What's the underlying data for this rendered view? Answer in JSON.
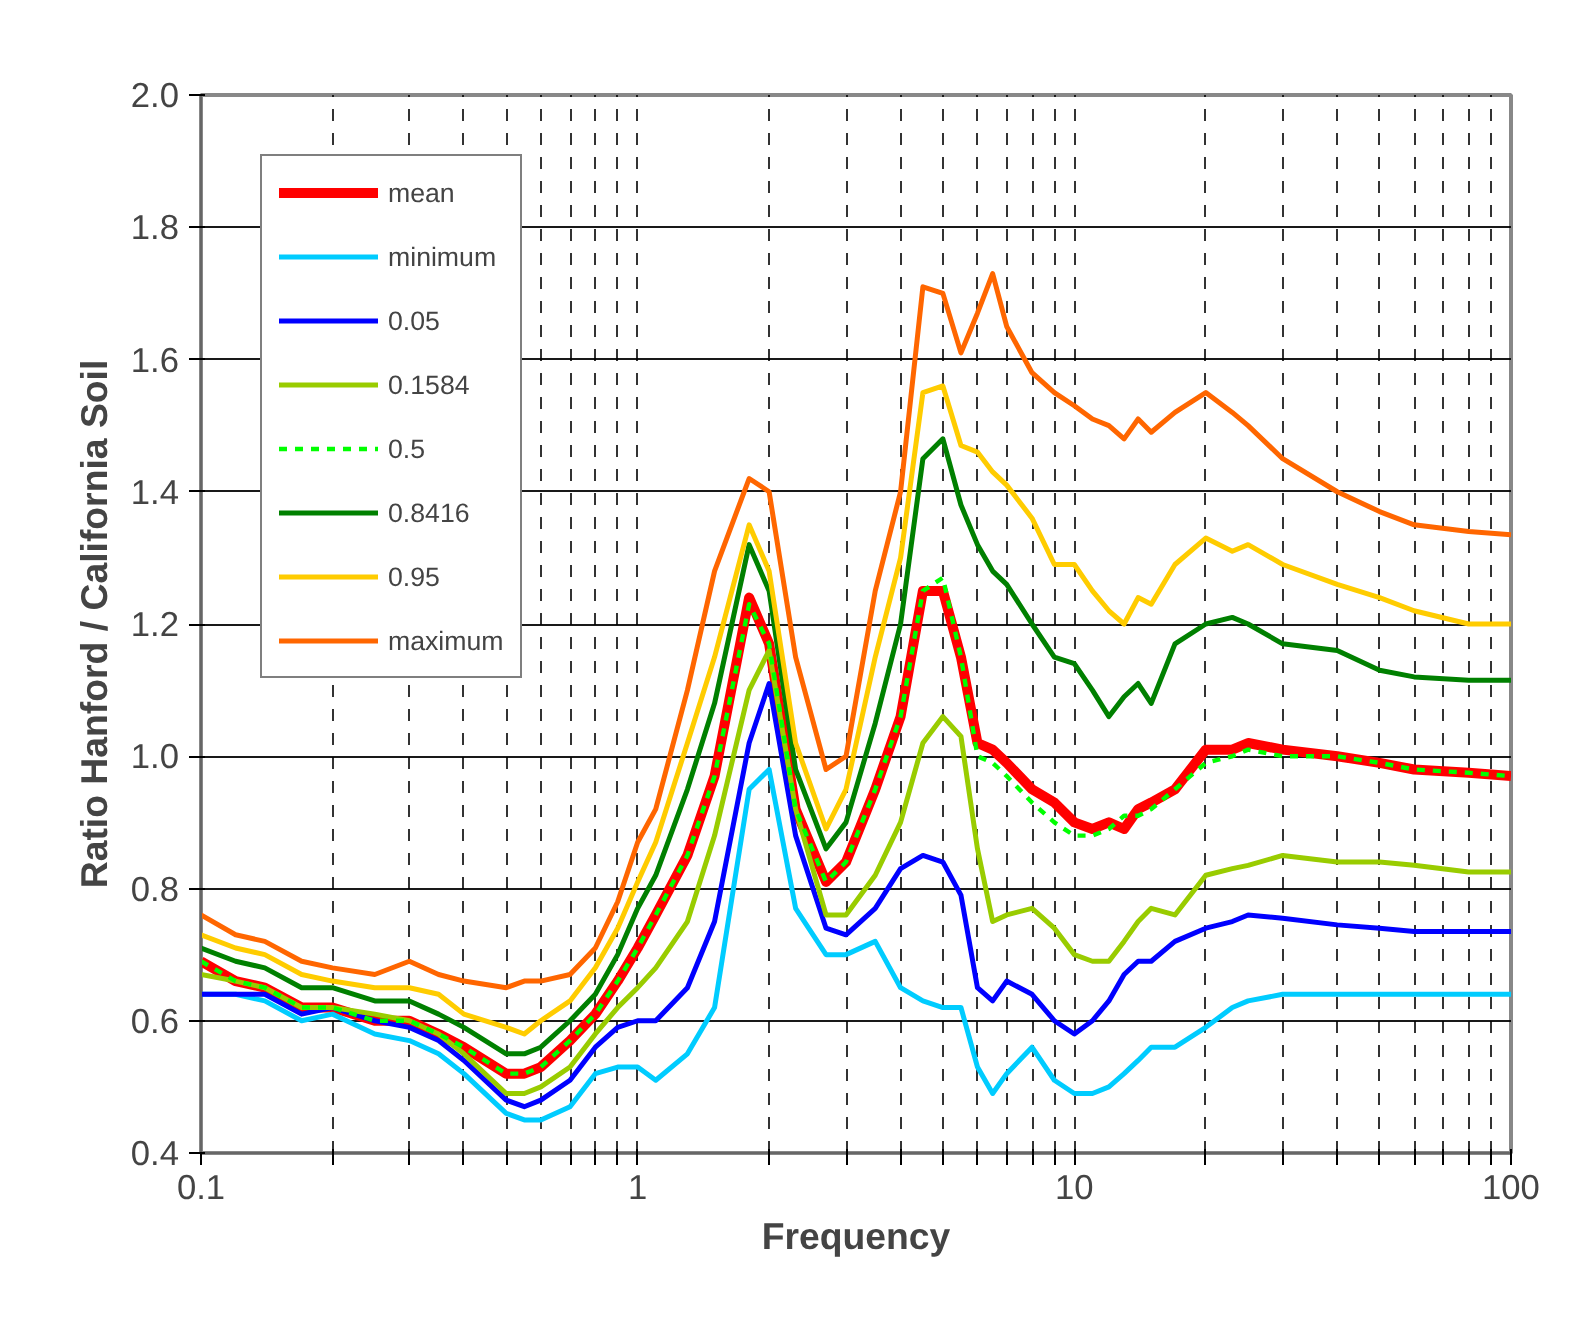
{
  "chart_data": {
    "type": "line",
    "xlabel": "Frequency",
    "ylabel": "Ratio Hanford / California Soil",
    "log": "x",
    "grid": true,
    "legend": "top left",
    "xlim": [
      0.1,
      100
    ],
    "ylim": [
      0.4,
      2.0
    ],
    "xticks": [
      0.1,
      {
        "value": 0.2,
        "label": null
      },
      {
        "value": 0.3,
        "label": null
      },
      {
        "value": 0.4,
        "label": null
      },
      {
        "value": 0.5,
        "label": null
      },
      {
        "value": 0.6,
        "label": null
      },
      {
        "value": 0.7,
        "label": null
      },
      {
        "value": 0.8,
        "label": null
      },
      {
        "value": 0.9,
        "label": null
      },
      1,
      {
        "value": 2,
        "label": null
      },
      {
        "value": 3,
        "label": null
      },
      {
        "value": 4,
        "label": null
      },
      {
        "value": 5,
        "label": null
      },
      {
        "value": 6,
        "label": null
      },
      {
        "value": 7,
        "label": null
      },
      {
        "value": 8,
        "label": null
      },
      {
        "value": 9,
        "label": null
      },
      10,
      {
        "value": 20,
        "label": null
      },
      {
        "value": 30,
        "label": null
      },
      {
        "value": 40,
        "label": null
      },
      {
        "value": 50,
        "label": null
      },
      {
        "value": 60,
        "label": null
      },
      {
        "value": 70,
        "label": null
      },
      {
        "value": 80,
        "label": null
      },
      {
        "value": 90,
        "label": null
      },
      100
    ],
    "yticks": [
      {
        "value": 0.4,
        "label": "0.4"
      },
      {
        "value": 0.6,
        "label": "0.6"
      },
      {
        "value": 0.8,
        "label": "0.8"
      },
      {
        "value": 1.0,
        "label": "1.0"
      },
      {
        "value": 1.2,
        "label": "1.2"
      },
      {
        "value": 1.4,
        "label": "1.4"
      },
      {
        "value": 1.6,
        "label": "1.6"
      },
      {
        "value": 1.8,
        "label": "1.8"
      },
      {
        "value": 2.0,
        "label": "2.0"
      }
    ],
    "x": [
      0.1,
      0.12,
      0.14,
      0.17,
      0.2,
      0.25,
      0.3,
      0.35,
      0.4,
      0.5,
      0.55,
      0.6,
      0.7,
      0.8,
      0.9,
      1.0,
      1.1,
      1.3,
      1.5,
      1.8,
      2.0,
      2.3,
      2.7,
      3.0,
      3.5,
      4.0,
      4.5,
      5.0,
      5.5,
      6.0,
      6.5,
      7.0,
      8.0,
      9.0,
      10,
      11,
      12,
      13,
      14,
      15,
      17,
      20,
      23,
      25,
      30,
      40,
      50,
      60,
      80,
      100
    ],
    "series": [
      {
        "name": "mean",
        "color": "#ff0000",
        "line_style": "solid",
        "values": [
          0.69,
          0.66,
          0.65,
          0.62,
          0.62,
          0.6,
          0.6,
          0.58,
          0.56,
          0.52,
          0.52,
          0.53,
          0.57,
          0.61,
          0.66,
          0.71,
          0.76,
          0.85,
          0.97,
          1.24,
          1.17,
          0.92,
          0.81,
          0.84,
          0.95,
          1.06,
          1.25,
          1.25,
          1.15,
          1.02,
          1.01,
          0.99,
          0.95,
          0.93,
          0.9,
          0.89,
          0.9,
          0.89,
          0.92,
          0.93,
          0.95,
          1.01,
          1.01,
          1.02,
          1.01,
          1.0,
          0.99,
          0.98,
          0.975,
          0.97
        ]
      },
      {
        "name": "minimum",
        "color": "#00ccff",
        "line_style": "solid",
        "values": [
          0.64,
          0.64,
          0.63,
          0.6,
          0.61,
          0.58,
          0.57,
          0.55,
          0.52,
          0.46,
          0.45,
          0.45,
          0.47,
          0.52,
          0.53,
          0.53,
          0.51,
          0.55,
          0.62,
          0.95,
          0.98,
          0.77,
          0.7,
          0.7,
          0.72,
          0.65,
          0.63,
          0.62,
          0.62,
          0.53,
          0.49,
          0.52,
          0.56,
          0.51,
          0.49,
          0.49,
          0.5,
          0.52,
          0.54,
          0.56,
          0.56,
          0.59,
          0.62,
          0.63,
          0.64,
          0.64,
          0.64,
          0.64,
          0.64,
          0.64
        ]
      },
      {
        "name": "0.05",
        "color": "#0000ff",
        "line_style": "solid",
        "values": [
          0.64,
          0.64,
          0.64,
          0.61,
          0.62,
          0.6,
          0.59,
          0.57,
          0.54,
          0.48,
          0.47,
          0.48,
          0.51,
          0.56,
          0.59,
          0.6,
          0.6,
          0.65,
          0.75,
          1.02,
          1.11,
          0.88,
          0.74,
          0.73,
          0.77,
          0.83,
          0.85,
          0.84,
          0.79,
          0.65,
          0.63,
          0.66,
          0.64,
          0.6,
          0.58,
          0.6,
          0.63,
          0.67,
          0.69,
          0.69,
          0.72,
          0.74,
          0.75,
          0.76,
          0.755,
          0.745,
          0.74,
          0.735,
          0.735,
          0.735
        ]
      },
      {
        "name": "0.1584",
        "color": "#99cc00",
        "line_style": "solid",
        "values": [
          0.67,
          0.66,
          0.65,
          0.62,
          0.62,
          0.61,
          0.6,
          0.58,
          0.55,
          0.49,
          0.49,
          0.5,
          0.53,
          0.58,
          0.62,
          0.65,
          0.68,
          0.75,
          0.88,
          1.1,
          1.16,
          0.92,
          0.76,
          0.76,
          0.82,
          0.9,
          1.02,
          1.06,
          1.03,
          0.86,
          0.75,
          0.76,
          0.77,
          0.74,
          0.7,
          0.69,
          0.69,
          0.72,
          0.75,
          0.77,
          0.76,
          0.82,
          0.83,
          0.835,
          0.85,
          0.84,
          0.84,
          0.835,
          0.825,
          0.825
        ]
      },
      {
        "name": "0.5",
        "color": "#00ff00",
        "line_style": "dashed",
        "values": [
          0.69,
          0.66,
          0.65,
          0.62,
          0.62,
          0.6,
          0.6,
          0.58,
          0.56,
          0.52,
          0.52,
          0.53,
          0.57,
          0.61,
          0.66,
          0.71,
          0.76,
          0.85,
          0.97,
          1.23,
          1.17,
          0.92,
          0.81,
          0.84,
          0.95,
          1.06,
          1.25,
          1.27,
          1.15,
          1.0,
          0.99,
          0.97,
          0.93,
          0.9,
          0.88,
          0.88,
          0.89,
          0.91,
          0.91,
          0.92,
          0.95,
          0.99,
          1.0,
          1.01,
          1.0,
          1.0,
          0.99,
          0.98,
          0.975,
          0.97
        ]
      },
      {
        "name": "0.8416",
        "color": "#008000",
        "line_style": "solid",
        "values": [
          0.71,
          0.69,
          0.68,
          0.65,
          0.65,
          0.63,
          0.63,
          0.61,
          0.59,
          0.55,
          0.55,
          0.56,
          0.6,
          0.64,
          0.7,
          0.77,
          0.82,
          0.95,
          1.08,
          1.32,
          1.25,
          0.98,
          0.86,
          0.9,
          1.05,
          1.2,
          1.45,
          1.48,
          1.38,
          1.32,
          1.28,
          1.26,
          1.2,
          1.15,
          1.14,
          1.1,
          1.06,
          1.09,
          1.11,
          1.08,
          1.17,
          1.2,
          1.21,
          1.2,
          1.17,
          1.16,
          1.13,
          1.12,
          1.115,
          1.115
        ]
      },
      {
        "name": "0.95",
        "color": "#ffcc00",
        "line_style": "solid",
        "values": [
          0.73,
          0.71,
          0.7,
          0.67,
          0.66,
          0.65,
          0.65,
          0.64,
          0.61,
          0.59,
          0.58,
          0.6,
          0.63,
          0.68,
          0.74,
          0.81,
          0.87,
          1.02,
          1.15,
          1.35,
          1.28,
          1.02,
          0.89,
          0.95,
          1.15,
          1.3,
          1.55,
          1.56,
          1.47,
          1.46,
          1.43,
          1.41,
          1.36,
          1.29,
          1.29,
          1.25,
          1.22,
          1.2,
          1.24,
          1.23,
          1.29,
          1.33,
          1.31,
          1.32,
          1.29,
          1.26,
          1.24,
          1.22,
          1.2,
          1.2
        ]
      },
      {
        "name": "maximum",
        "color": "#ff6600",
        "line_style": "solid",
        "values": [
          0.76,
          0.73,
          0.72,
          0.69,
          0.68,
          0.67,
          0.69,
          0.67,
          0.66,
          0.65,
          0.66,
          0.66,
          0.67,
          0.71,
          0.78,
          0.87,
          0.92,
          1.1,
          1.28,
          1.42,
          1.4,
          1.15,
          0.98,
          1.0,
          1.25,
          1.4,
          1.71,
          1.7,
          1.61,
          1.67,
          1.73,
          1.65,
          1.58,
          1.55,
          1.53,
          1.51,
          1.5,
          1.48,
          1.51,
          1.49,
          1.52,
          1.55,
          1.52,
          1.5,
          1.45,
          1.4,
          1.37,
          1.35,
          1.34,
          1.335
        ]
      }
    ]
  }
}
